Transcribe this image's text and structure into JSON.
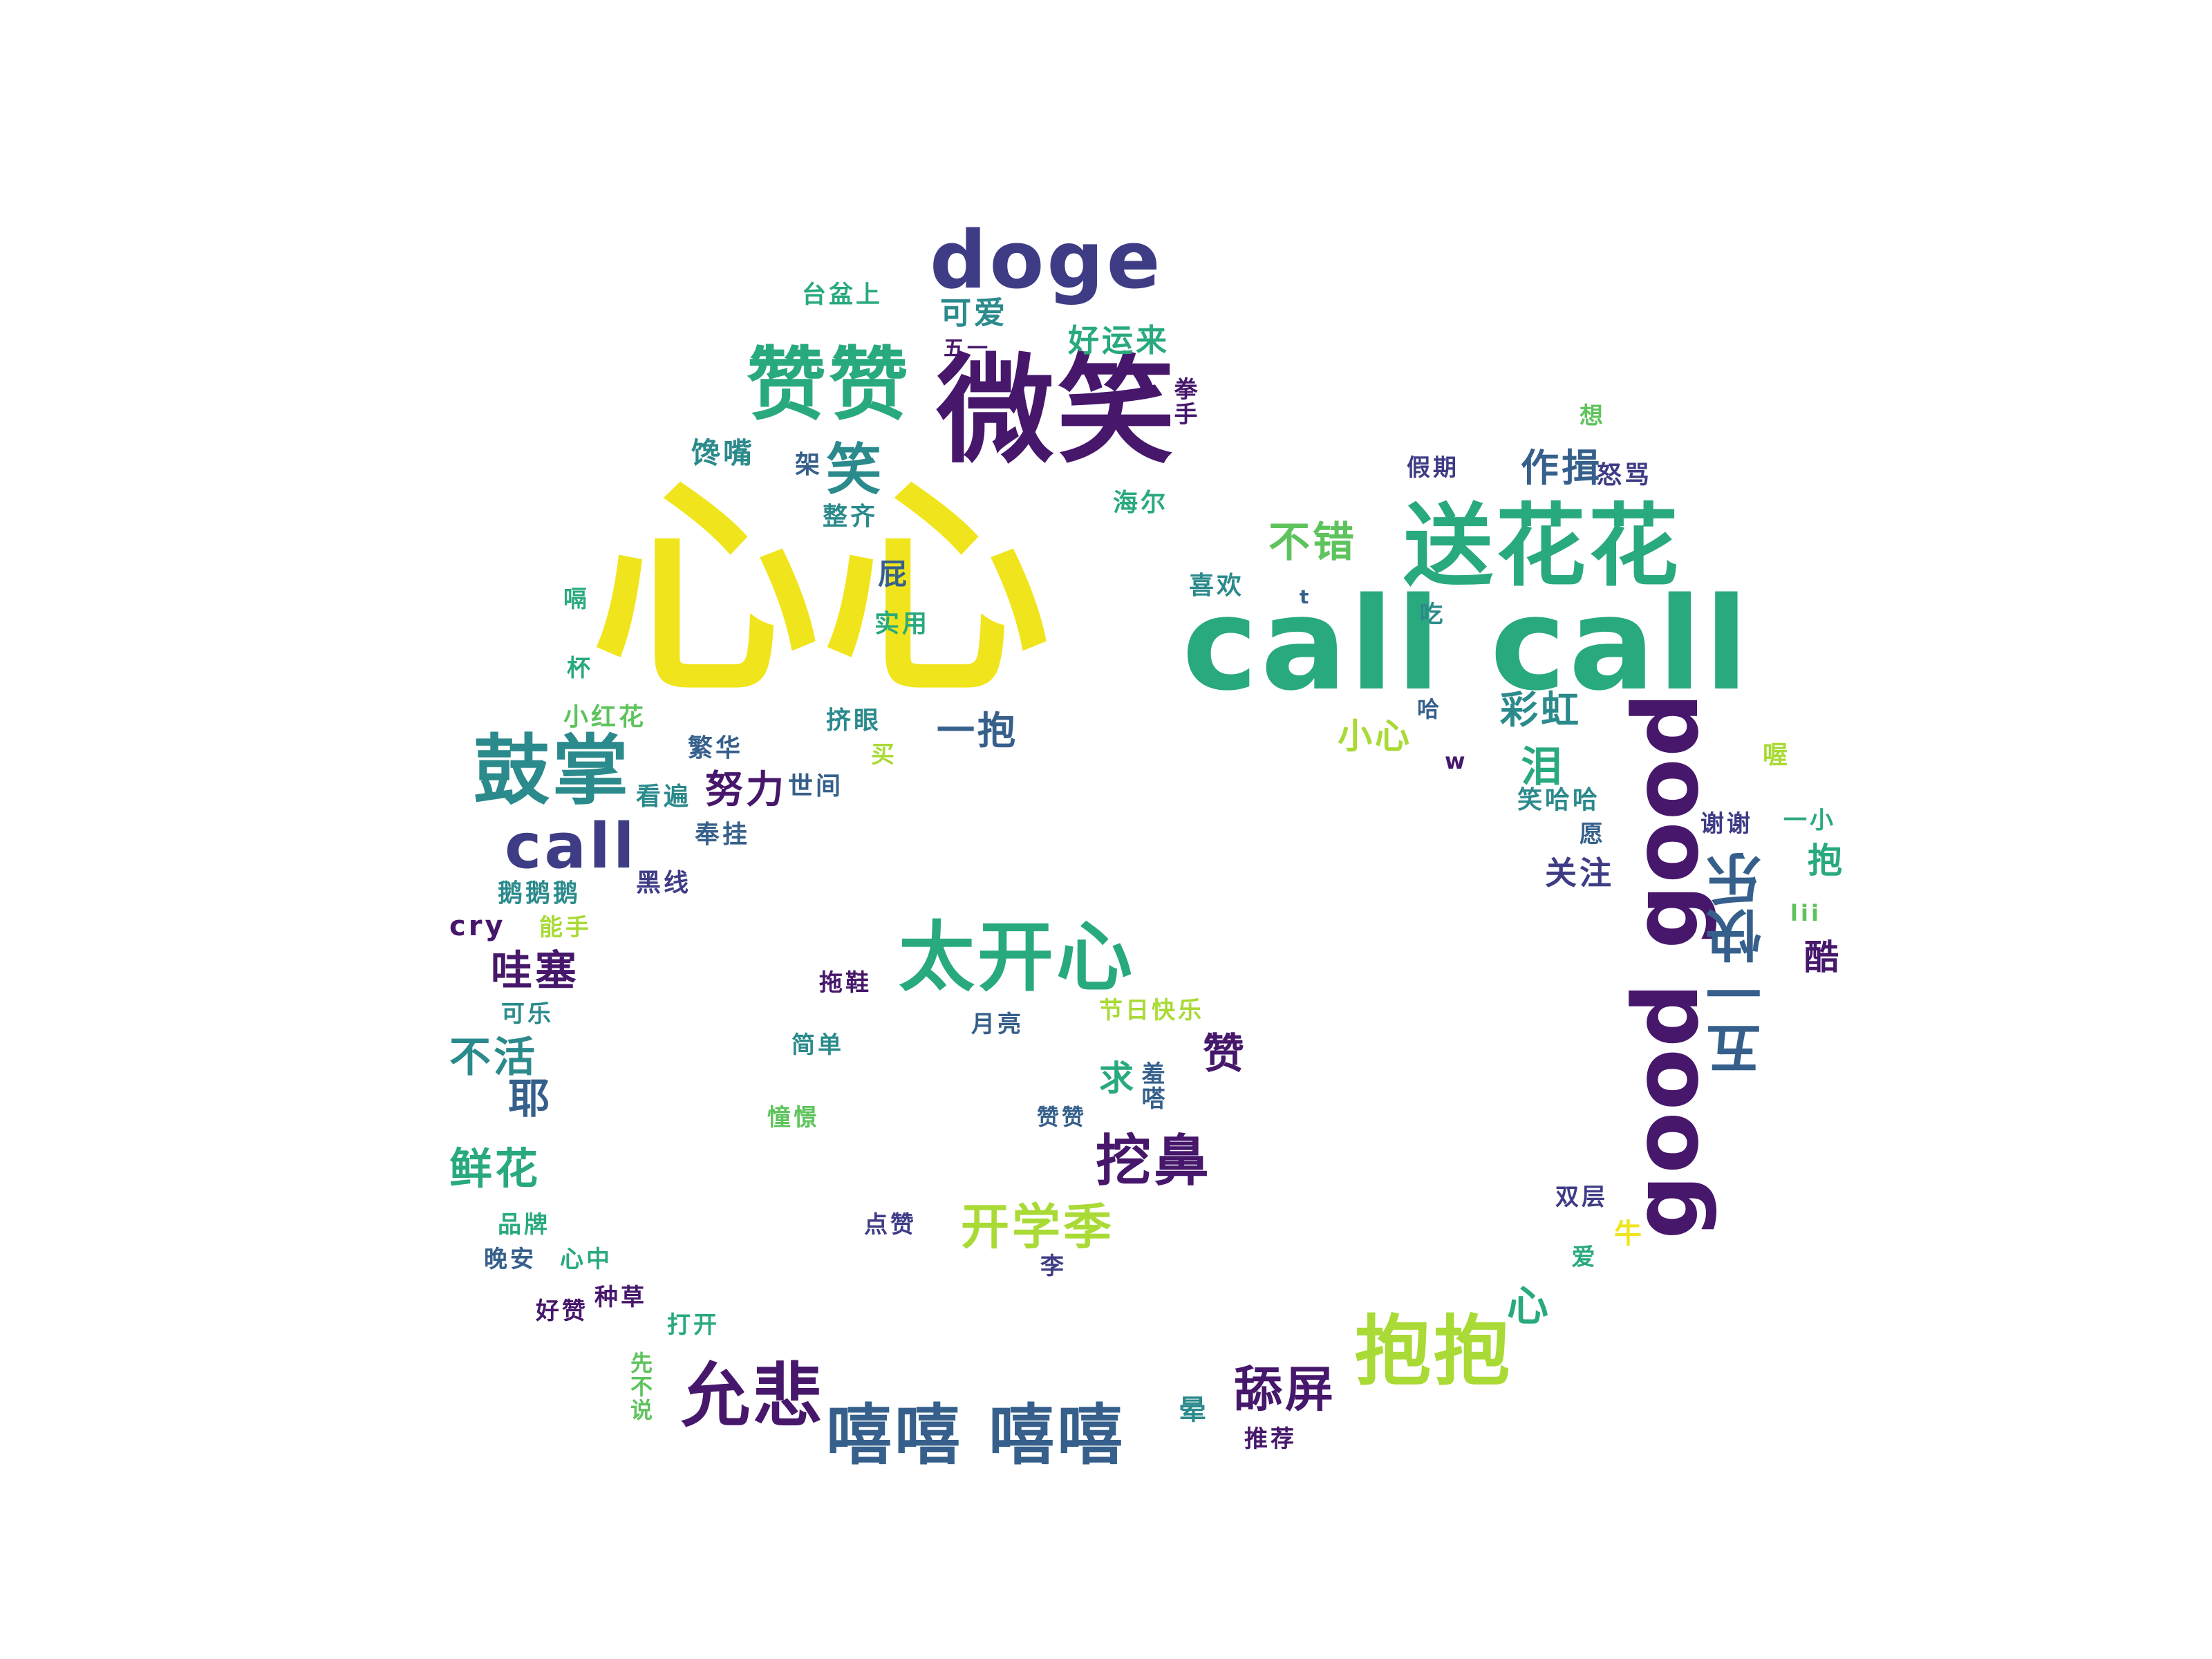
{
  "palette": {
    "dark_purple": "#46176b",
    "indigo": "#3f3c86",
    "blue": "#36608b",
    "teal": "#2b8a8c",
    "green": "#29a97e",
    "light_green": "#5fc35d",
    "lime": "#a9da35",
    "yellow": "#f0e51d"
  },
  "words": [
    "心心",
    "call call",
    "微笑",
    "送花花",
    "good good",
    "赞赞",
    "doge",
    "太开心",
    "鼓掌",
    "call",
    "抱抱",
    "嘻嘻 嘻嘻",
    "允悲",
    "五一快乐",
    "挖鼻",
    "开学季",
    "舔屏",
    "笑",
    "不错",
    "作揖",
    "彩虹",
    "泪",
    "一抱",
    "努力",
    "哇塞",
    "不活",
    "耶",
    "鲜花",
    "小心",
    "可爱",
    "好运来",
    "台盆上",
    "五一",
    "拳手",
    "馋嘴",
    "架",
    "整齐",
    "海尔",
    "屁",
    "实用",
    "喜欢",
    "嗝",
    "杯",
    "小红花",
    "挤眼",
    "繁华",
    "看遍",
    "世间",
    "买",
    "奉挂",
    "黑线",
    "鹅鹅鹅",
    "cry",
    "能手",
    "可乐",
    "拖鞋",
    "月亮",
    "节日快乐",
    "简单",
    "憧憬",
    "赞赞",
    "求",
    "羞嗒",
    "赞",
    "点赞",
    "李",
    "品牌",
    "晚安",
    "心中",
    "好赞",
    "种草",
    "打开",
    "先不说",
    "晕",
    "推荐",
    "心",
    "牛",
    "双层",
    "爱",
    "谢谢",
    "一小",
    "抱",
    "lii",
    "酷",
    "关注",
    "愿",
    "笑哈哈",
    "喔",
    "怒骂",
    "想",
    "假期",
    "吃",
    "哈",
    "w",
    "t"
  ]
}
